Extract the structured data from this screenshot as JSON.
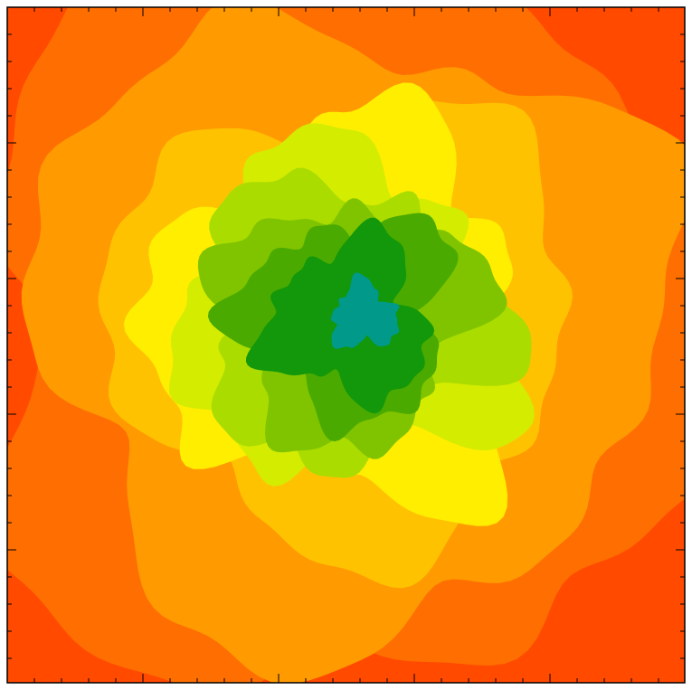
{
  "chart_data": {
    "type": "contour",
    "colors": [
      "#ff4a00",
      "#ff6e00",
      "#ff9a00",
      "#ffc200",
      "#ffee00",
      "#d4ec00",
      "#aadc00",
      "#80c400",
      "#4aaa00",
      "#12980a",
      "#00998a"
    ]
  }
}
